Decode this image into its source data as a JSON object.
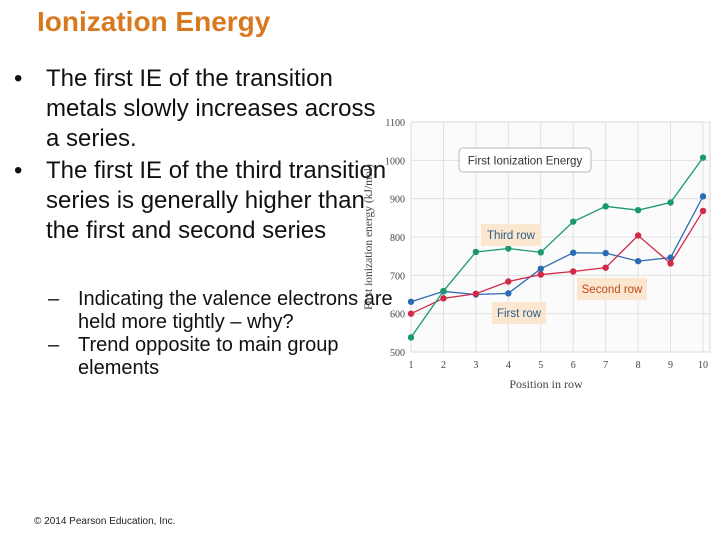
{
  "slide": {
    "title": "Ionization Energy",
    "bullets": [
      "The first IE of the transition metals slowly increases across a series.",
      "The first IE of the third transition series is generally higher than the first and second series"
    ],
    "sub_bullets": [
      "Indicating the valence electrons are held more tightly – why?",
      "Trend opposite to main group elements"
    ],
    "bullet_symbol": "•",
    "dash_symbol": "–",
    "copyright": "© 2014 Pearson Education, Inc."
  },
  "chart_data": {
    "type": "line",
    "title": "First Ionization Energy",
    "xlabel": "Position in row",
    "ylabel": "First ionization energy (kJ/mol)",
    "x": [
      1,
      2,
      3,
      4,
      5,
      6,
      7,
      8,
      9,
      10
    ],
    "xlim": [
      1,
      10
    ],
    "ylim": [
      500,
      1100
    ],
    "yticks": [
      500,
      600,
      700,
      800,
      900,
      1000,
      1100
    ],
    "grid": true,
    "series": [
      {
        "name": "First row",
        "color": "#2a6db3",
        "values": [
          631,
          658,
          650,
          653,
          717,
          759,
          758,
          737,
          746,
          906
        ]
      },
      {
        "name": "Second row",
        "color": "#d02a48",
        "values": [
          600,
          640,
          652,
          684,
          702,
          710,
          720,
          804,
          731,
          868
        ]
      },
      {
        "name": "Third row",
        "color": "#1a9a6a",
        "values": [
          538,
          659,
          761,
          770,
          760,
          840,
          880,
          870,
          890,
          1007
        ]
      }
    ],
    "annotations": [
      {
        "text": "Third row",
        "series": "Third row"
      },
      {
        "text": "Second row",
        "series": "Second row"
      },
      {
        "text": "First row",
        "series": "First row"
      }
    ]
  }
}
